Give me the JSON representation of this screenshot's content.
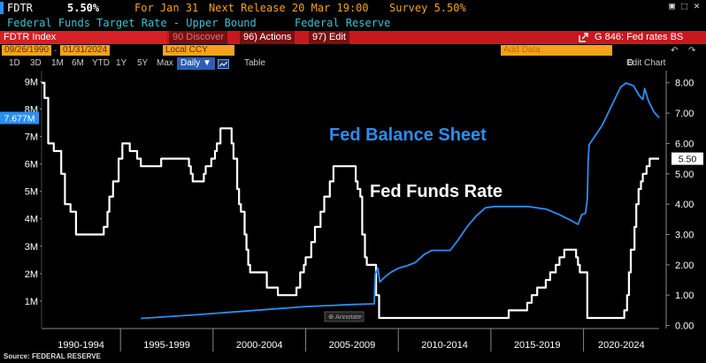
{
  "header": {
    "ticker": "FDTR",
    "value": "5.50%",
    "for_label": "For Jan 31",
    "next_release": "Next Release 20 Mar 19:00",
    "survey": "Survey 5.50%",
    "name": "Federal Funds Target Rate - Upper Bound",
    "source": "Federal Reserve"
  },
  "window_controls": [
    "▣",
    "⬚",
    "✕"
  ],
  "command_bar": {
    "index_name": "FDTR Index",
    "discover": "90 Discover",
    "actions": "96) Actions",
    "edit": "97) Edit",
    "graph_title": "G 846: Fed rates BS"
  },
  "date_bar": {
    "start": "09/26/1990",
    "end": "01/31/2024",
    "currency": "Local CCY",
    "add_data": "Add Data",
    "edit_chart": "Edit Chart"
  },
  "toolbar": {
    "periods": [
      "1D",
      "3D",
      "1M",
      "6M",
      "YTD",
      "1Y",
      "5Y",
      "Max"
    ],
    "frequency": "Daily ▼",
    "table": "Table"
  },
  "colors": {
    "balance_sheet": "#2b8ff0",
    "fed_funds": "#ffffff",
    "red_bar": "#c8181f",
    "orange": "#f6a31b",
    "cyan": "#39c3d6"
  },
  "chart_data": {
    "type": "line",
    "annotations": {
      "balance_sheet": "Fed Balance Sheet",
      "fed_funds": "Fed Funds Rate",
      "annotate_label": "Annotate"
    },
    "left_axis": {
      "ticks": [
        "9M",
        "8M",
        "7M",
        "6M",
        "5M",
        "4M",
        "3M",
        "2M",
        "1M"
      ],
      "range": [
        0,
        9.4
      ],
      "last_value_label": "7.677M"
    },
    "right_axis": {
      "ticks": [
        "8.00",
        "7.00",
        "6.00",
        "5.00",
        "4.00",
        "3.00",
        "2.00",
        "1.00",
        "0.00"
      ],
      "range": [
        -0.1,
        8.4
      ],
      "last_value_label": "5.50"
    },
    "x_categories": [
      "1990-1994",
      "1995-1999",
      "2000-2004",
      "2005-2009",
      "2010-2014",
      "2015-2019",
      "2020-2024"
    ],
    "x_range": [
      1990.74,
      2024.08
    ],
    "series": [
      {
        "name": "Fed Funds Rate",
        "axis": "right",
        "points": [
          [
            1990.74,
            8.0
          ],
          [
            1990.9,
            7.5
          ],
          [
            1991.1,
            6.0
          ],
          [
            1991.4,
            5.75
          ],
          [
            1991.8,
            5.0
          ],
          [
            1992.0,
            4.0
          ],
          [
            1992.3,
            3.75
          ],
          [
            1992.6,
            3.0
          ],
          [
            1994.1,
            3.25
          ],
          [
            1994.3,
            3.75
          ],
          [
            1994.4,
            4.25
          ],
          [
            1994.6,
            4.75
          ],
          [
            1994.9,
            5.5
          ],
          [
            1995.1,
            6.0
          ],
          [
            1995.5,
            5.75
          ],
          [
            1995.9,
            5.5
          ],
          [
            1996.1,
            5.25
          ],
          [
            1997.2,
            5.5
          ],
          [
            1998.7,
            5.25
          ],
          [
            1998.8,
            5.0
          ],
          [
            1998.9,
            4.75
          ],
          [
            1999.5,
            5.0
          ],
          [
            1999.6,
            5.25
          ],
          [
            1999.9,
            5.5
          ],
          [
            2000.1,
            5.75
          ],
          [
            2000.2,
            6.0
          ],
          [
            2000.4,
            6.5
          ],
          [
            2001.0,
            6.0
          ],
          [
            2001.1,
            5.5
          ],
          [
            2001.3,
            4.5
          ],
          [
            2001.4,
            4.0
          ],
          [
            2001.5,
            3.75
          ],
          [
            2001.7,
            3.0
          ],
          [
            2001.8,
            2.5
          ],
          [
            2001.9,
            2.0
          ],
          [
            2002.0,
            1.75
          ],
          [
            2002.9,
            1.25
          ],
          [
            2003.5,
            1.0
          ],
          [
            2004.5,
            1.25
          ],
          [
            2004.7,
            1.75
          ],
          [
            2004.9,
            2.0
          ],
          [
            2005.0,
            2.25
          ],
          [
            2005.3,
            2.75
          ],
          [
            2005.5,
            3.25
          ],
          [
            2005.8,
            3.75
          ],
          [
            2006.0,
            4.25
          ],
          [
            2006.3,
            4.75
          ],
          [
            2006.5,
            5.25
          ],
          [
            2007.7,
            4.75
          ],
          [
            2007.8,
            4.5
          ],
          [
            2007.95,
            4.25
          ],
          [
            2008.05,
            3.0
          ],
          [
            2008.2,
            2.25
          ],
          [
            2008.3,
            2.0
          ],
          [
            2008.8,
            1.0
          ],
          [
            2008.96,
            0.25
          ],
          [
            2015.96,
            0.5
          ],
          [
            2016.96,
            0.75
          ],
          [
            2017.2,
            1.0
          ],
          [
            2017.5,
            1.25
          ],
          [
            2017.96,
            1.5
          ],
          [
            2018.2,
            1.75
          ],
          [
            2018.5,
            2.0
          ],
          [
            2018.7,
            2.25
          ],
          [
            2018.96,
            2.5
          ],
          [
            2019.6,
            2.25
          ],
          [
            2019.7,
            2.0
          ],
          [
            2019.8,
            1.75
          ],
          [
            2020.2,
            0.25
          ],
          [
            2022.2,
            0.5
          ],
          [
            2022.35,
            1.0
          ],
          [
            2022.45,
            1.75
          ],
          [
            2022.55,
            2.5
          ],
          [
            2022.75,
            3.25
          ],
          [
            2022.85,
            4.0
          ],
          [
            2022.97,
            4.5
          ],
          [
            2023.1,
            4.75
          ],
          [
            2023.2,
            5.0
          ],
          [
            2023.4,
            5.25
          ],
          [
            2023.57,
            5.5
          ],
          [
            2024.08,
            5.5
          ]
        ]
      },
      {
        "name": "Fed Balance Sheet",
        "axis": "left",
        "points": [
          [
            1996.1,
            0.37
          ],
          [
            1999.0,
            0.5
          ],
          [
            2002.0,
            0.65
          ],
          [
            2005.0,
            0.8
          ],
          [
            2007.6,
            0.88
          ],
          [
            2008.7,
            0.9
          ],
          [
            2008.75,
            2.0
          ],
          [
            2008.9,
            2.2
          ],
          [
            2009.0,
            1.7
          ],
          [
            2009.3,
            1.9
          ],
          [
            2009.6,
            2.05
          ],
          [
            2010.0,
            2.2
          ],
          [
            2010.5,
            2.3
          ],
          [
            2010.9,
            2.4
          ],
          [
            2011.4,
            2.7
          ],
          [
            2011.8,
            2.85
          ],
          [
            2012.3,
            2.85
          ],
          [
            2012.8,
            2.85
          ],
          [
            2013.2,
            3.2
          ],
          [
            2013.7,
            3.7
          ],
          [
            2014.2,
            4.1
          ],
          [
            2014.7,
            4.4
          ],
          [
            2015.2,
            4.45
          ],
          [
            2016.0,
            4.45
          ],
          [
            2017.0,
            4.45
          ],
          [
            2018.0,
            4.35
          ],
          [
            2018.7,
            4.15
          ],
          [
            2019.3,
            3.95
          ],
          [
            2019.7,
            3.8
          ],
          [
            2019.9,
            4.15
          ],
          [
            2020.1,
            4.2
          ],
          [
            2020.2,
            4.7
          ],
          [
            2020.25,
            6.1
          ],
          [
            2020.3,
            6.7
          ],
          [
            2020.6,
            7.0
          ],
          [
            2021.0,
            7.4
          ],
          [
            2021.5,
            8.1
          ],
          [
            2022.0,
            8.8
          ],
          [
            2022.3,
            8.95
          ],
          [
            2022.7,
            8.85
          ],
          [
            2023.0,
            8.5
          ],
          [
            2023.2,
            8.35
          ],
          [
            2023.3,
            8.75
          ],
          [
            2023.5,
            8.3
          ],
          [
            2023.8,
            7.9
          ],
          [
            2024.08,
            7.68
          ]
        ]
      }
    ]
  },
  "footer": {
    "source": "Source: FEDERAL RESERVE"
  }
}
